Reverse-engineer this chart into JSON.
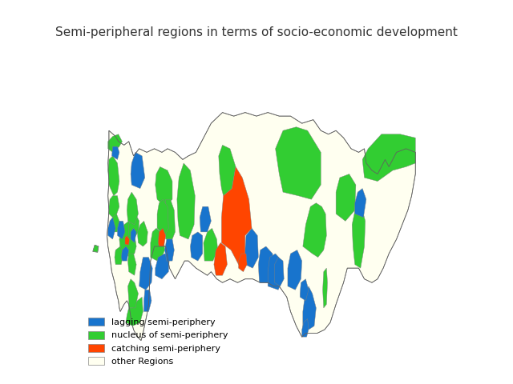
{
  "title": "Semi-peripheral regions in terms of socio-economic development",
  "title_fontsize": 11,
  "legend_items": [
    {
      "label": "lagging semi-periphery",
      "color": "#1874CD"
    },
    {
      "label": "nucleus of semi-periphery",
      "color": "#32CD32"
    },
    {
      "label": "catching semi-periphery",
      "color": "#FF4500"
    },
    {
      "label": "other Regions",
      "color": "#FFFFF0"
    }
  ],
  "background_color": "#FFFFFF",
  "map_edge_color": "#808080",
  "map_edge_width": 0.3,
  "figsize": [
    6.4,
    4.8
  ],
  "dpi": 100
}
